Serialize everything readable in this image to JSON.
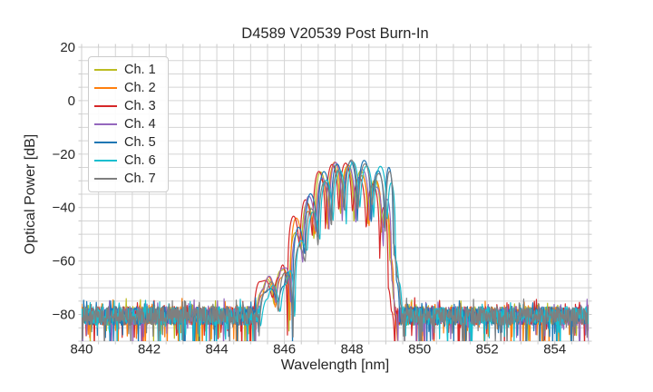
{
  "title": "D4589 V20539 Post Burn-In",
  "chart_data": {
    "type": "line",
    "title": "D4589 V20539 Post Burn-In",
    "xlabel": "Wavelength [nm]",
    "ylabel": "Optical Power [dB]",
    "xlim": [
      840,
      855
    ],
    "ylim": [
      -90,
      20
    ],
    "x_ticks": [
      840,
      842,
      844,
      846,
      848,
      850,
      852,
      854
    ],
    "x_tick_labels": [
      "840",
      "842",
      "844",
      "846",
      "848",
      "850",
      "852",
      "854"
    ],
    "y_ticks": [
      20,
      0,
      -20,
      -40,
      -60,
      -80
    ],
    "y_tick_labels": [
      "20",
      "0",
      "−20",
      "−40",
      "−60",
      "−80"
    ],
    "x_minor_step": 0.5,
    "y_minor_step": 5,
    "grid": true,
    "legend_position": "upper left",
    "noise_floor_db": -80.5,
    "peak_power_db": -23.5,
    "peak_wavelength_nm": 847.9,
    "signal_band_nm": [
      845.1,
      849.5
    ],
    "mode_spacing_nm": 0.4,
    "series": [
      {
        "name": "Ch. 1",
        "color": "#bcbd22",
        "offset_nm": 0.0,
        "tilt_db_per_nm": -0.5,
        "seed": 11
      },
      {
        "name": "Ch. 2",
        "color": "#ff7f0e",
        "offset_nm": 0.03,
        "tilt_db_per_nm": -2.0,
        "seed": 23
      },
      {
        "name": "Ch. 3",
        "color": "#d62728",
        "offset_nm": -0.05,
        "tilt_db_per_nm": -4.0,
        "seed": 37
      },
      {
        "name": "Ch. 4",
        "color": "#9467bd",
        "offset_nm": 0.05,
        "tilt_db_per_nm": -2.5,
        "seed": 41
      },
      {
        "name": "Ch. 5",
        "color": "#1f77b4",
        "offset_nm": 0.1,
        "tilt_db_per_nm": 2.0,
        "seed": 53
      },
      {
        "name": "Ch. 6",
        "color": "#17becf",
        "offset_nm": 0.17,
        "tilt_db_per_nm": 3.5,
        "seed": 67
      },
      {
        "name": "Ch. 7",
        "color": "#7f7f7f",
        "offset_nm": 0.12,
        "tilt_db_per_nm": 2.5,
        "seed": 79
      }
    ],
    "envelope_anchors_db": [
      [
        845.12,
        -85,
        3
      ],
      [
        845.32,
        -72,
        2
      ],
      [
        845.5,
        -67.5,
        2
      ],
      [
        845.7,
        -77,
        3
      ],
      [
        845.88,
        -66,
        3
      ],
      [
        846.0,
        -63.5,
        2.5
      ],
      [
        846.14,
        -84,
        8
      ],
      [
        846.32,
        -50,
        6
      ],
      [
        846.5,
        -57,
        5
      ],
      [
        846.67,
        -38,
        4
      ],
      [
        846.88,
        -52,
        4
      ],
      [
        847.07,
        -28.5,
        2.5
      ],
      [
        847.27,
        -47,
        4
      ],
      [
        847.46,
        -25,
        2
      ],
      [
        847.66,
        -44,
        4
      ],
      [
        847.86,
        -23.5,
        1.5
      ],
      [
        848.06,
        -43,
        4
      ],
      [
        848.26,
        -25,
        2
      ],
      [
        848.47,
        -45,
        4
      ],
      [
        848.67,
        -28.5,
        3
      ],
      [
        848.87,
        -50,
        5
      ],
      [
        848.99,
        -34,
        7
      ],
      [
        849.12,
        -60,
        6
      ],
      [
        849.22,
        -74,
        5
      ],
      [
        849.32,
        -84,
        4
      ]
    ],
    "tilt_center_nm": 847.6,
    "noise": {
      "mean_db": -80.5,
      "half_spread_db": 3.5,
      "dip_prob": 0.06,
      "dip_extra_db": 10,
      "spike_prob": 0.1,
      "spike_extra_db": 3.5
    },
    "sample_step_nm": 0.015
  },
  "colors": {
    "grid": "#d4d4d4",
    "spine": "#cfcfcf",
    "tick": "#c8c8c8",
    "text": "#262626",
    "background": "#ffffff"
  }
}
